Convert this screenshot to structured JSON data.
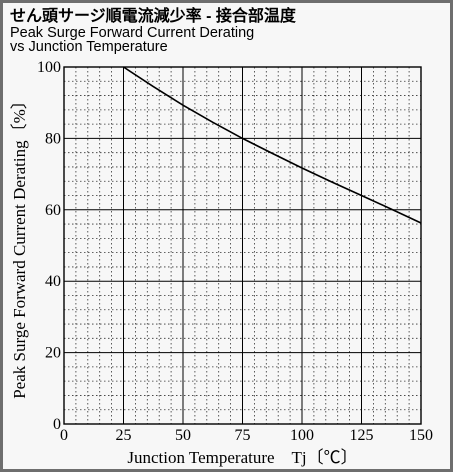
{
  "chart_data": {
    "type": "line",
    "title_jp": "せん頭サージ順電流減少率 - 接合部温度",
    "title_en_1": "Peak Surge Forward Current Derating",
    "title_en_2": "vs Junction Temperature",
    "xlabel": "Junction Temperature　Tj〔℃〕",
    "ylabel": "Peak Surge Forward Current Derating〔%〕",
    "xlim": [
      0,
      150
    ],
    "ylim": [
      0,
      100
    ],
    "x_ticks": [
      0,
      25,
      50,
      75,
      100,
      125,
      150
    ],
    "y_ticks": [
      0,
      20,
      40,
      60,
      80,
      100
    ],
    "grid": true,
    "series": [
      {
        "x": [
          25,
          37.5,
          50,
          62.5,
          75,
          87.5,
          100,
          112.5,
          125,
          137.5,
          150
        ],
        "y": [
          100,
          94.5,
          89.3,
          84.5,
          80,
          75.8,
          71.7,
          67.8,
          64,
          60.2,
          56.3
        ]
      }
    ]
  }
}
